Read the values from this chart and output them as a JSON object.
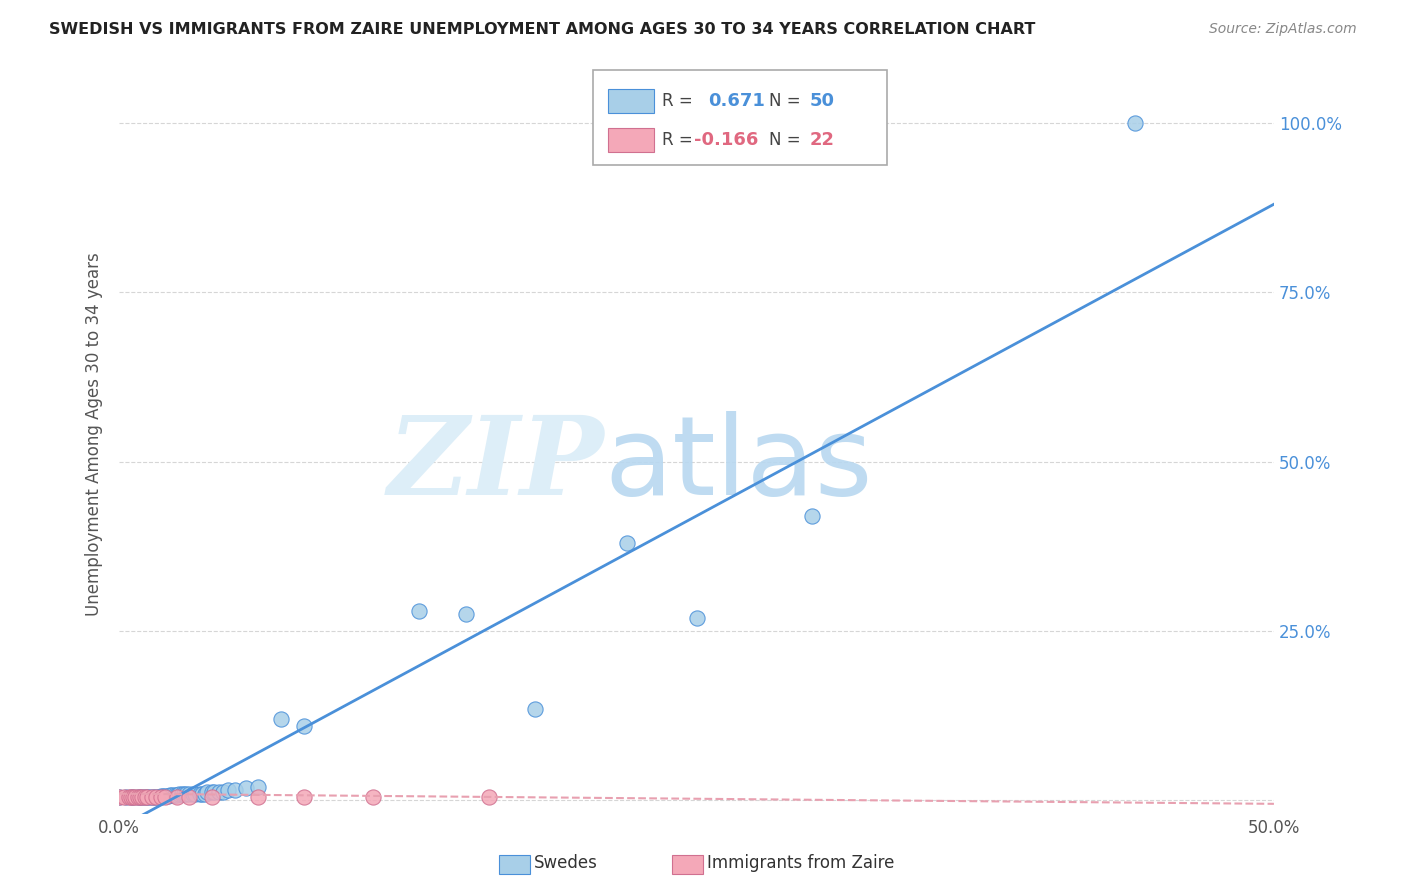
{
  "title": "SWEDISH VS IMMIGRANTS FROM ZAIRE UNEMPLOYMENT AMONG AGES 30 TO 34 YEARS CORRELATION CHART",
  "source": "Source: ZipAtlas.com",
  "ylabel": "Unemployment Among Ages 30 to 34 years",
  "xlim": [
    0.0,
    0.5
  ],
  "ylim": [
    -0.02,
    1.1
  ],
  "x_ticks": [
    0.0,
    0.1,
    0.2,
    0.3,
    0.4,
    0.5
  ],
  "y_ticks": [
    0.0,
    0.25,
    0.5,
    0.75,
    1.0
  ],
  "x_tick_labels": [
    "0.0%",
    "",
    "",
    "",
    "",
    "50.0%"
  ],
  "y_tick_labels": [
    "",
    "25.0%",
    "50.0%",
    "75.0%",
    "100.0%"
  ],
  "swedes_R": 0.671,
  "swedes_N": 50,
  "zaire_R": -0.166,
  "zaire_N": 22,
  "swedes_color": "#a8cfe8",
  "zaire_color": "#f4a8b8",
  "swedes_line_color": "#4a90d9",
  "zaire_line_color": "#e8a0b0",
  "background_color": "#ffffff",
  "grid_color": "#cccccc",
  "swedes_x": [
    0.0,
    0.003,
    0.005,
    0.006,
    0.008,
    0.009,
    0.01,
    0.011,
    0.012,
    0.013,
    0.014,
    0.015,
    0.016,
    0.017,
    0.018,
    0.019,
    0.02,
    0.021,
    0.022,
    0.023,
    0.024,
    0.025,
    0.026,
    0.027,
    0.028,
    0.029,
    0.03,
    0.032,
    0.033,
    0.035,
    0.036,
    0.037,
    0.038,
    0.04,
    0.041,
    0.043,
    0.045,
    0.047,
    0.05,
    0.055,
    0.06,
    0.07,
    0.08,
    0.13,
    0.15,
    0.18,
    0.22,
    0.25,
    0.3,
    0.44
  ],
  "swedes_y": [
    0.005,
    0.005,
    0.005,
    0.005,
    0.005,
    0.005,
    0.005,
    0.005,
    0.005,
    0.005,
    0.005,
    0.005,
    0.005,
    0.005,
    0.007,
    0.007,
    0.007,
    0.007,
    0.008,
    0.008,
    0.008,
    0.008,
    0.009,
    0.009,
    0.009,
    0.01,
    0.01,
    0.01,
    0.01,
    0.01,
    0.01,
    0.01,
    0.012,
    0.012,
    0.013,
    0.013,
    0.013,
    0.015,
    0.015,
    0.018,
    0.02,
    0.12,
    0.11,
    0.28,
    0.275,
    0.135,
    0.38,
    0.27,
    0.42,
    1.0
  ],
  "zaire_x": [
    0.0,
    0.002,
    0.004,
    0.005,
    0.006,
    0.007,
    0.008,
    0.009,
    0.01,
    0.011,
    0.012,
    0.014,
    0.016,
    0.018,
    0.02,
    0.025,
    0.03,
    0.04,
    0.06,
    0.08,
    0.11,
    0.16
  ],
  "zaire_y": [
    0.005,
    0.005,
    0.005,
    0.005,
    0.005,
    0.005,
    0.005,
    0.005,
    0.005,
    0.005,
    0.005,
    0.005,
    0.005,
    0.005,
    0.005,
    0.005,
    0.005,
    0.005,
    0.005,
    0.005,
    0.005,
    0.005
  ],
  "swede_line_x0": 0.0,
  "swede_line_y0": -0.04,
  "swede_line_x1": 0.5,
  "swede_line_y1": 0.88,
  "zaire_line_x0": 0.0,
  "zaire_line_y0": 0.01,
  "zaire_line_x1": 0.5,
  "zaire_line_y1": -0.005
}
